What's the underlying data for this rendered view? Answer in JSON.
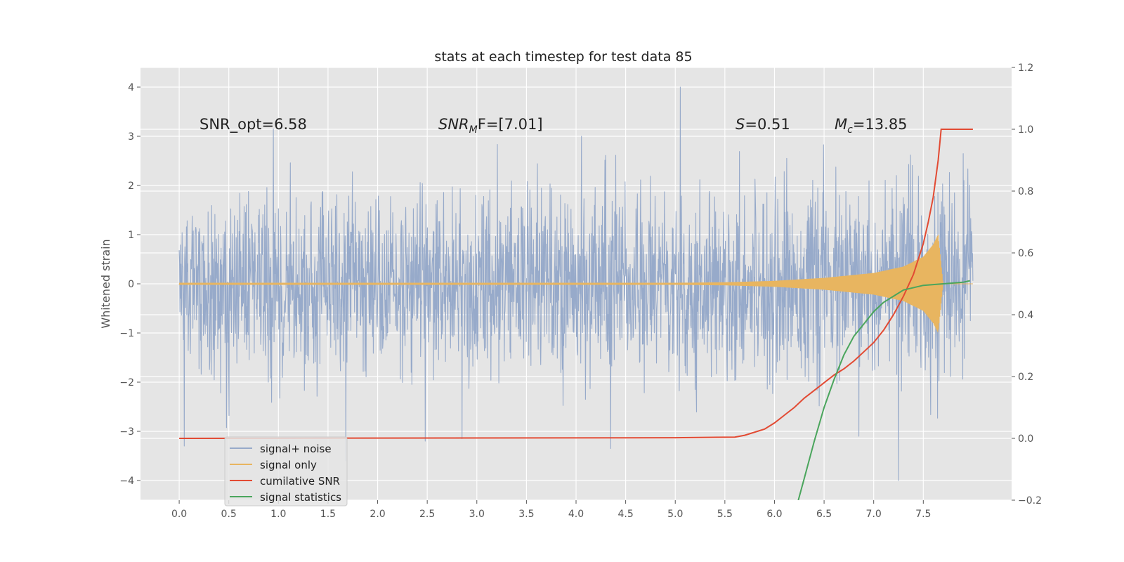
{
  "chart_data": {
    "type": "line",
    "title": "stats at each timestep for test data 85",
    "ylabel": "Whitened strain",
    "xlim": [
      -0.39,
      8.39
    ],
    "ylim": [
      -4.4,
      4.4
    ],
    "ylim_right": [
      -0.2,
      1.2
    ],
    "x_ticks": [
      0.0,
      0.5,
      1.0,
      1.5,
      2.0,
      2.5,
      3.0,
      3.5,
      4.0,
      4.5,
      5.0,
      5.5,
      6.0,
      6.5,
      7.0,
      7.5
    ],
    "x_tick_labels": [
      "0.0",
      "0.5",
      "1.0",
      "1.5",
      "2.0",
      "2.5",
      "3.0",
      "3.5",
      "4.0",
      "4.5",
      "5.0",
      "5.5",
      "6.0",
      "6.5",
      "7.0",
      "7.5"
    ],
    "y_ticks": [
      -4,
      -3,
      -2,
      -1,
      0,
      1,
      2,
      3,
      4
    ],
    "y_tick_labels": [
      "−4",
      "−3",
      "−2",
      "−1",
      "0",
      "1",
      "2",
      "3",
      "4"
    ],
    "y_ticks_right": [
      -0.2,
      0.0,
      0.2,
      0.4,
      0.6,
      0.8,
      1.0,
      1.2
    ],
    "y_tick_labels_right": [
      "−0.2",
      "0.0",
      "0.2",
      "0.4",
      "0.6",
      "0.8",
      "1.0",
      "1.2"
    ],
    "grid": true,
    "legend_position": "lower-left",
    "annotations": {
      "snr_opt": "SNR_opt=6.58",
      "snr_mf_main": "SNR",
      "snr_mf_sub": "M",
      "snr_mf_rest": "F=[7.01]",
      "s_main": "S",
      "s_rest": "=0.51",
      "mc_main": "M",
      "mc_sub": "c",
      "mc_rest": "=13.85"
    },
    "series": [
      {
        "name": "signal+ noise",
        "color": "#97aaca",
        "axis": "left",
        "x_range": [
          0.0,
          8.0
        ],
        "envelope_sigma": 0.75,
        "peak_outliers": [
          [
            0.05,
            -3.3
          ],
          [
            0.95,
            3.15
          ],
          [
            1.68,
            -3.6
          ],
          [
            2.48,
            -3.2
          ],
          [
            2.85,
            -3.15
          ],
          [
            4.35,
            -3.35
          ],
          [
            5.05,
            4.0
          ],
          [
            7.25,
            -4.0
          ],
          [
            6.85,
            -3.1
          ]
        ]
      },
      {
        "name": "signal only",
        "color": "#e8b560",
        "axis": "left",
        "x": [
          0.0,
          5.0,
          5.5,
          6.0,
          6.5,
          7.0,
          7.3,
          7.5,
          7.6,
          7.65,
          7.7,
          8.0
        ],
        "amplitude": [
          0.02,
          0.02,
          0.03,
          0.06,
          0.12,
          0.22,
          0.35,
          0.55,
          0.8,
          1.0,
          0.0,
          0.0
        ]
      },
      {
        "name": "cumilative SNR",
        "color": "#e24a33",
        "axis": "right",
        "x": [
          0.0,
          5.0,
          5.6,
          5.7,
          5.9,
          6.0,
          6.1,
          6.2,
          6.3,
          6.4,
          6.5,
          6.6,
          6.7,
          6.8,
          6.9,
          7.0,
          7.1,
          7.2,
          7.3,
          7.4,
          7.5,
          7.55,
          7.6,
          7.65,
          7.68,
          8.0
        ],
        "values": [
          0.0,
          0.002,
          0.004,
          0.01,
          0.03,
          0.05,
          0.075,
          0.1,
          0.13,
          0.155,
          0.18,
          0.205,
          0.225,
          0.25,
          0.28,
          0.31,
          0.35,
          0.4,
          0.46,
          0.53,
          0.63,
          0.7,
          0.78,
          0.9,
          1.0,
          1.0
        ]
      },
      {
        "name": "signal statistics",
        "color": "#4aa55c",
        "axis": "right",
        "x": [
          6.24,
          6.3,
          6.4,
          6.5,
          6.6,
          6.7,
          6.8,
          6.9,
          7.0,
          7.1,
          7.2,
          7.3,
          7.5,
          7.7,
          7.9,
          7.97
        ],
        "values": [
          -0.2,
          -0.13,
          -0.01,
          0.1,
          0.19,
          0.27,
          0.33,
          0.37,
          0.41,
          0.44,
          0.46,
          0.48,
          0.495,
          0.5,
          0.505,
          0.51
        ]
      }
    ]
  }
}
